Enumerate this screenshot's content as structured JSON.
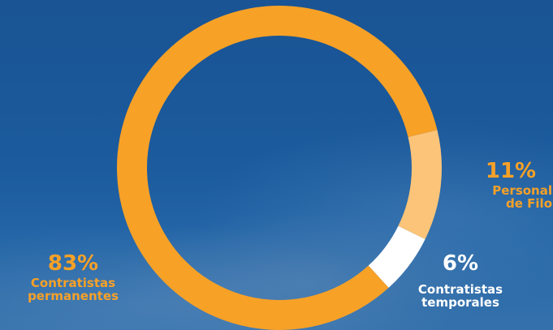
{
  "chart_data": {
    "type": "pie",
    "donut": true,
    "slices": [
      {
        "label_lines": [
          "Contratistas",
          "permanentes"
        ],
        "value": 83,
        "value_label": "83%",
        "color": "#f7a127"
      },
      {
        "label_lines": [
          "Personal",
          "de Filo"
        ],
        "value": 11,
        "value_label": "11%",
        "color": "#fbc478"
      },
      {
        "label_lines": [
          "Contratistas",
          "temporales"
        ],
        "value": 6,
        "value_label": "6%",
        "color": "#ffffff"
      }
    ],
    "grid": false,
    "legend": "none"
  }
}
